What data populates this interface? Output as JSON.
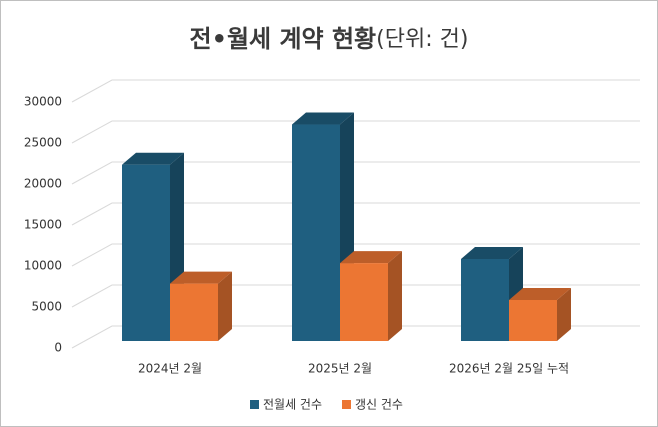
{
  "chart_data": {
    "type": "bar3d",
    "title": "전•월세 계약 현황",
    "unit_label": "(단위: 건)",
    "categories": [
      "2024년 2월",
      "2025년 2월",
      "2026년 2월 25일 누적"
    ],
    "series": [
      {
        "name": "전월세 건수",
        "color": "#1f5f80",
        "values": [
          21500,
          26400,
          10000
        ]
      },
      {
        "name": "갱신 건수",
        "color": "#ec7633",
        "values": [
          7000,
          9500,
          5000
        ]
      }
    ],
    "ylim": [
      0,
      30000
    ],
    "yticks": [
      0,
      5000,
      10000,
      15000,
      20000,
      25000,
      30000
    ],
    "grid": true
  }
}
